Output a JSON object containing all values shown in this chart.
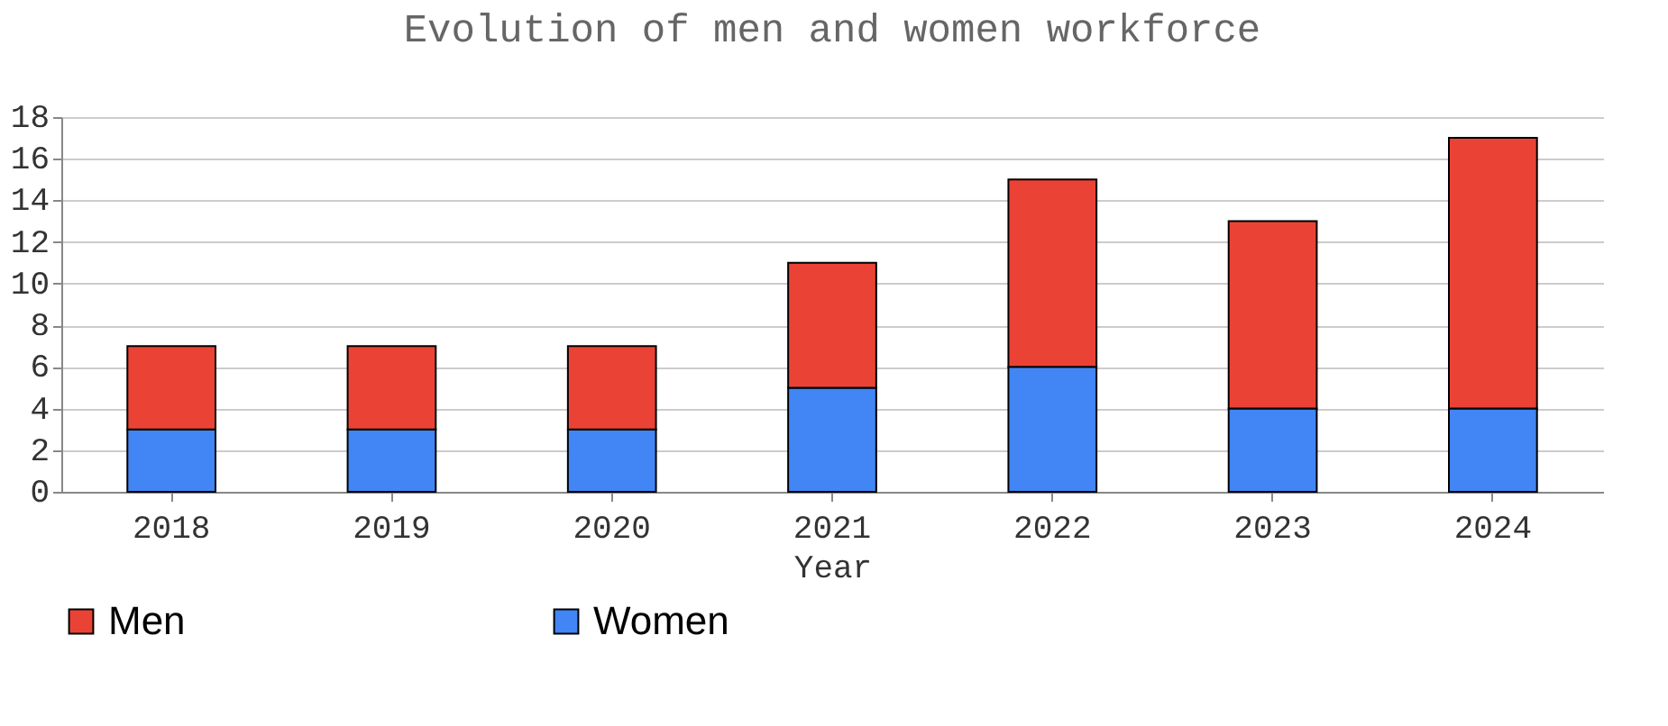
{
  "chart_data": {
    "type": "bar",
    "title": "Evolution of men and women workforce",
    "xlabel": "Year",
    "categories": [
      "2018",
      "2019",
      "2020",
      "2021",
      "2022",
      "2023",
      "2024"
    ],
    "stacked": true,
    "series": [
      {
        "name": "Women",
        "color": "#4285f4",
        "values": [
          3,
          3,
          3,
          5,
          6,
          4,
          4
        ]
      },
      {
        "name": "Men",
        "color": "#ea4335",
        "values": [
          4,
          4,
          4,
          6,
          9,
          9,
          13
        ]
      }
    ],
    "ylim": [
      0,
      18
    ],
    "yticks": [
      0,
      2,
      4,
      6,
      8,
      10,
      12,
      14,
      16,
      18
    ],
    "grid": "y",
    "legend": "bottom"
  }
}
